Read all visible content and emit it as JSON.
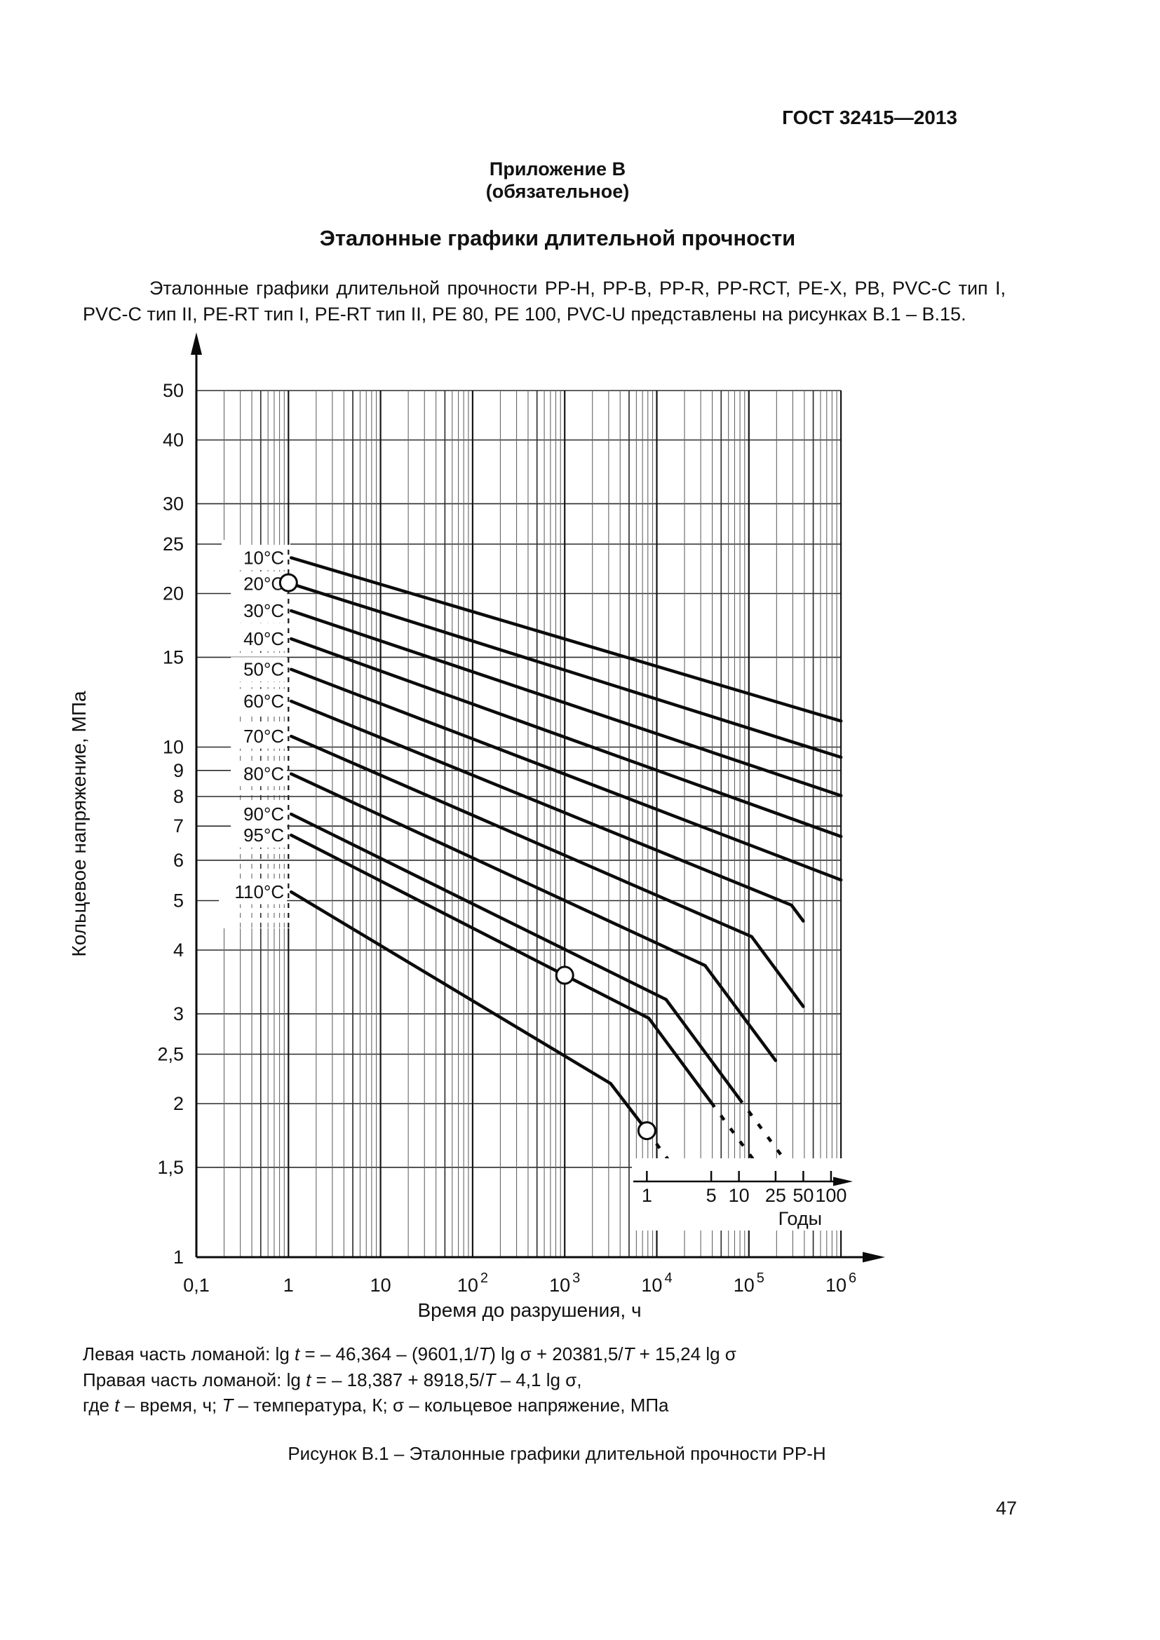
{
  "page": {
    "header": "ГОСТ 32415—2013",
    "annex": {
      "label": "Приложение В",
      "note": "(обязательное)"
    },
    "title": "Эталонные графики длительной прочности",
    "paragraph": "Эталонные графики длительной прочности PP-H, PP-B, PP-R, PP-RCT, PE-X, PB, PVC-C тип I, PVC-C тип II, PE-RT тип I, PE-RT тип II, PE 80, PE 100, PVC-U представлены на рисунках В.1 – В.15.",
    "formulas": [
      [
        {
          "t": "Левая часть ломаной: lg "
        },
        {
          "t": "t",
          "i": true
        },
        {
          "t": " = – 46,364 – (9601,1/"
        },
        {
          "t": "T",
          "i": true
        },
        {
          "t": ") lg σ + 20381,5/"
        },
        {
          "t": "T",
          "i": true
        },
        {
          "t": " + 15,24 lg σ"
        }
      ],
      [
        {
          "t": "Правая часть ломаной: lg "
        },
        {
          "t": "t",
          "i": true
        },
        {
          "t": " = – 18,387 + 8918,5/"
        },
        {
          "t": "T",
          "i": true
        },
        {
          "t": " – 4,1 lg σ,"
        }
      ],
      [
        {
          "t": "где "
        },
        {
          "t": "t",
          "i": true
        },
        {
          "t": " – время, ч; "
        },
        {
          "t": "T",
          "i": true
        },
        {
          "t": " – температура, К; σ – кольцевое напряжение, МПа"
        }
      ]
    ],
    "caption": "Рисунок В.1 – Эталонные графики длительной прочности PP-H",
    "page_number": "47"
  },
  "chart_data": {
    "type": "line",
    "title": "Эталонные графики длительной прочности PP-H",
    "xlabel": "Время до разрушения, ч",
    "ylabel": "Кольцевое напряжение, МПа",
    "x_axis": {
      "scale": "log",
      "range_hours": [
        0.1,
        1000000
      ],
      "tick_values": [
        0.1,
        1,
        10,
        100,
        1000,
        10000,
        100000,
        1000000
      ],
      "tick_labels": [
        "0,1",
        "1",
        "10",
        "10|2",
        "10|3",
        "10|4",
        "10|5",
        "10|6"
      ]
    },
    "y_axis": {
      "scale": "log",
      "range_mpa": [
        1,
        50
      ],
      "tick_values": [
        50,
        40,
        30,
        25,
        20,
        15,
        10,
        9,
        8,
        7,
        6,
        5,
        4,
        3,
        2.5,
        2,
        1.5,
        1
      ],
      "tick_labels": [
        "50",
        "40",
        "30",
        "25",
        "20",
        "15",
        "10",
        "9",
        "8",
        "7",
        "6",
        "5",
        "4",
        "3",
        "2,5",
        "2",
        "1,5",
        "1"
      ]
    },
    "years_axis": {
      "label": "Годы",
      "tick_years": [
        1,
        5,
        10,
        25,
        50,
        100
      ],
      "tick_labels": [
        "1",
        "5",
        "10",
        "25",
        "50",
        "100"
      ],
      "one_year_hours": 7800
    },
    "series": [
      {
        "label": "10°C",
        "solid": [
          [
            1.07,
            23.5
          ],
          [
            1000000,
            11.25
          ]
        ]
      },
      {
        "label": "20°C",
        "solid": [
          [
            1.07,
            20.9
          ],
          [
            1000000,
            9.55
          ]
        ],
        "markers": [
          [
            1.0,
            21.0
          ]
        ]
      },
      {
        "label": "30°C",
        "solid": [
          [
            1.07,
            18.5
          ],
          [
            1000000,
            8.03
          ]
        ]
      },
      {
        "label": "40°C",
        "solid": [
          [
            1.07,
            16.3
          ],
          [
            1000000,
            6.68
          ]
        ]
      },
      {
        "label": "50°C",
        "solid": [
          [
            1.07,
            14.2
          ],
          [
            1000000,
            5.49
          ]
        ]
      },
      {
        "label": "60°C",
        "solid": [
          [
            1.07,
            12.3
          ],
          [
            290000,
            4.9
          ],
          [
            390000,
            4.56
          ]
        ]
      },
      {
        "label": "70°C",
        "solid": [
          [
            1.07,
            10.5
          ],
          [
            107000,
            4.25
          ],
          [
            390000,
            3.1
          ]
        ]
      },
      {
        "label": "80°C",
        "solid": [
          [
            1.07,
            8.86
          ],
          [
            33500,
            3.73
          ],
          [
            195000,
            2.43
          ]
        ]
      },
      {
        "label": "90°C",
        "solid": [
          [
            1.07,
            7.39
          ],
          [
            12600,
            3.2
          ],
          [
            78000,
            2.05
          ]
        ],
        "dotted": [
          [
            78000,
            2.05
          ],
          [
            246000,
            1.55
          ]
        ]
      },
      {
        "label": "95°C",
        "solid": [
          [
            1.07,
            6.72
          ],
          [
            8200,
            2.94
          ],
          [
            39000,
            2.01
          ]
        ],
        "dotted": [
          [
            39000,
            2.01
          ],
          [
            113000,
            1.55
          ]
        ],
        "markers": [
          [
            1000,
            3.57
          ]
        ]
      },
      {
        "label": "110°C",
        "solid": [
          [
            1.07,
            5.2
          ],
          [
            3150,
            2.19
          ],
          [
            7800,
            1.77
          ]
        ],
        "dotted": [
          [
            7800,
            1.77
          ],
          [
            13400,
            1.55
          ]
        ],
        "markers": [
          [
            7800,
            1.77
          ]
        ]
      }
    ],
    "formulas_note": {
      "left_branch": "lg t = – 46,364 – (9601,1/T) lg σ + 20381,5/T + 15,24 lg σ",
      "right_branch": "lg t = – 18,387 + 8918,5/T – 4,1 lg σ"
    },
    "legend_position": "labels-on-curves",
    "grid": true
  }
}
